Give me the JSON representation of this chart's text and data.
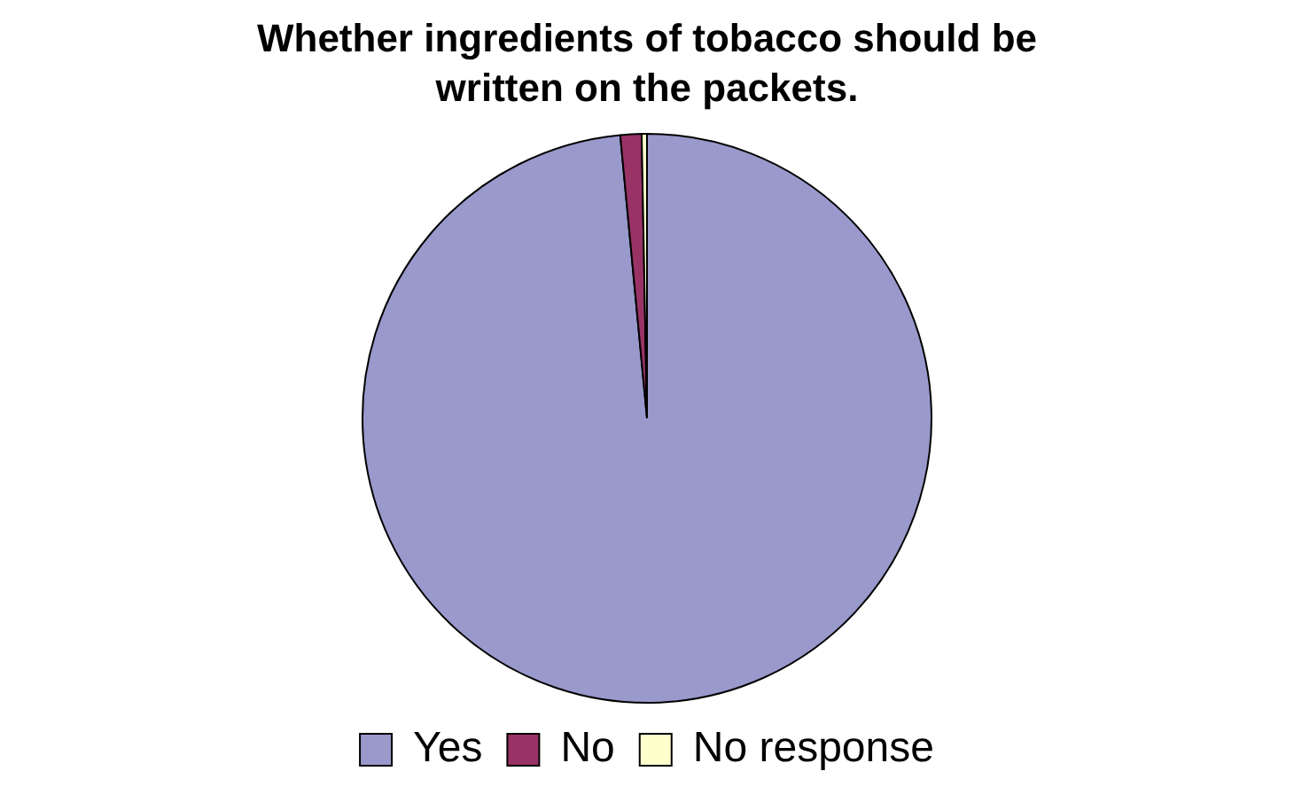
{
  "chart_data": {
    "type": "pie",
    "title": "Whether ingredients of tobacco should be written on the packets.",
    "categories": [
      "Yes",
      "No",
      "No response"
    ],
    "values": [
      98.5,
      1.2,
      0.3
    ],
    "colors": [
      "#9999cc",
      "#993366",
      "#ffffcc"
    ],
    "legend": "bottom"
  }
}
